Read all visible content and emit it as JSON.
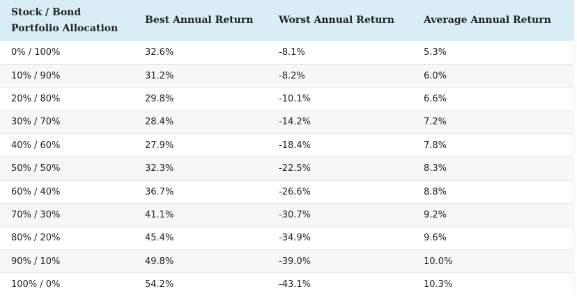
{
  "table": {
    "headers": [
      "Stock / Bond\nPortfolio Allocation",
      "Best Annual Return",
      "Worst Annual Return",
      "Average Annual Return"
    ],
    "header_first_line1": "Stock / Bond",
    "header_first_line2": "Portfolio Allocation",
    "rows": [
      [
        "0% / 100%",
        "32.6%",
        "-8.1%",
        "5.3%"
      ],
      [
        "10% / 90%",
        "31.2%",
        "-8.2%",
        "6.0%"
      ],
      [
        "20% / 80%",
        "29.8%",
        "-10.1%",
        "6.6%"
      ],
      [
        "30% / 70%",
        "28.4%",
        "-14.2%",
        "7.2%"
      ],
      [
        "40% / 60%",
        "27.9%",
        "-18.4%",
        "7.8%"
      ],
      [
        "50% / 50%",
        "32.3%",
        "-22.5%",
        "8.3%"
      ],
      [
        "60% / 40%",
        "36.7%",
        "-26.6%",
        "8.8%"
      ],
      [
        "70% / 30%",
        "41.1%",
        "-30.7%",
        "9.2%"
      ],
      [
        "80% / 20%",
        "45.4%",
        "-34.9%",
        "9.6%"
      ],
      [
        "90% / 10%",
        "49.8%",
        "-39.0%",
        "10.0%"
      ],
      [
        "100% / 0%",
        "54.2%",
        "-43.1%",
        "10.3%"
      ]
    ]
  },
  "colors": {
    "header_bg": "#d9edf7",
    "stripe_bg": "#f7f7f7",
    "row_border": "#e3e3e3"
  }
}
